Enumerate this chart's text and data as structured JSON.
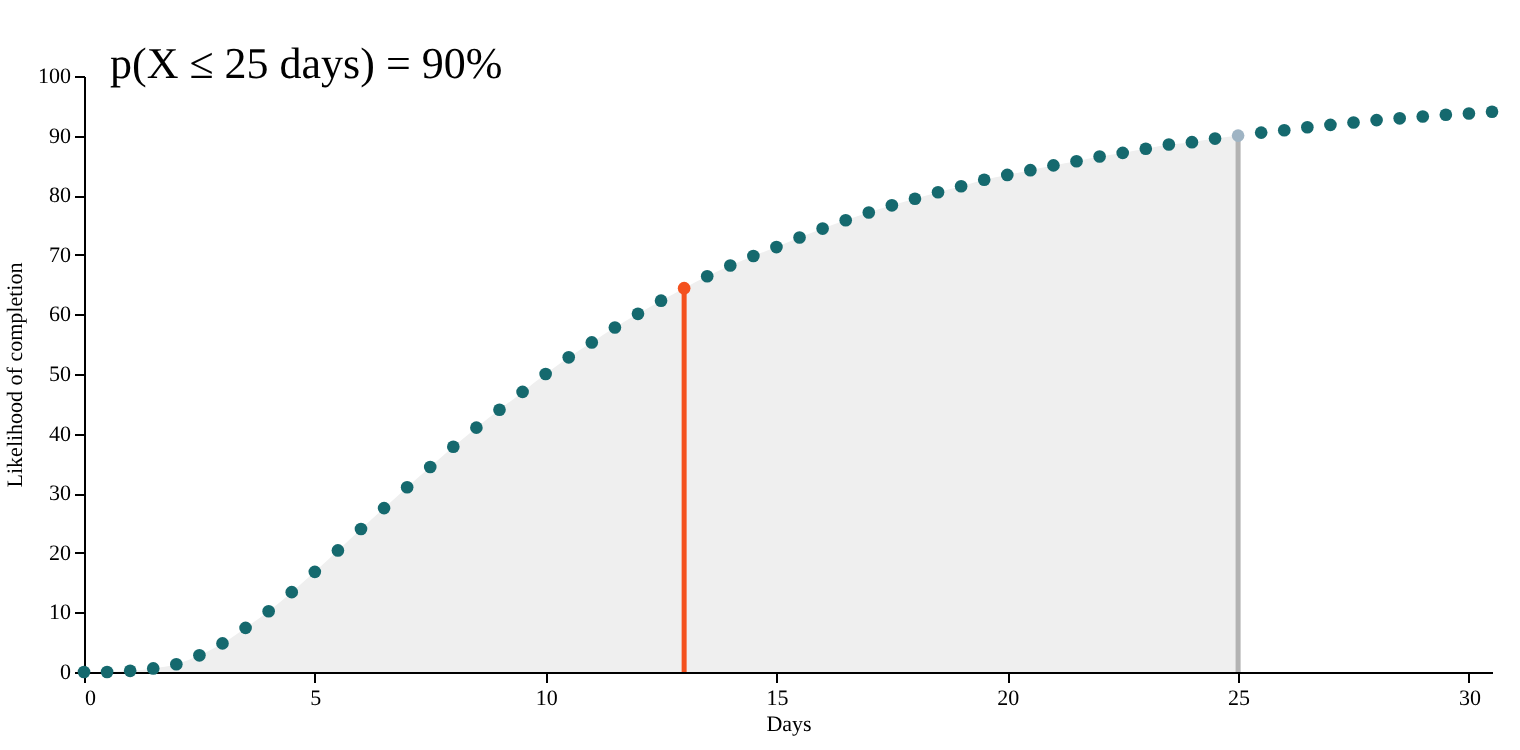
{
  "chart_data": {
    "type": "scatter",
    "title": "p(X ≤ 25 days) = 90%",
    "xlabel": "Days",
    "ylabel": "Likelihood of completion",
    "xlim": [
      0,
      30.5
    ],
    "xticks": [
      0,
      5,
      10,
      15,
      20,
      25,
      30
    ],
    "ylim": [
      0,
      100
    ],
    "yticks": [
      0,
      10,
      20,
      30,
      40,
      50,
      60,
      70,
      80,
      90,
      100
    ],
    "series": [
      {
        "type": "area",
        "color": "#efefef",
        "x": [
          0,
          0.5,
          1,
          1.5,
          2,
          2.5,
          3,
          3.5,
          4,
          4.5,
          5,
          5.5,
          6,
          6.5,
          7,
          7.5,
          8,
          8.5,
          9,
          9.5,
          10,
          10.5,
          11,
          11.5,
          12,
          12.5,
          13,
          13.5,
          14,
          14.5,
          15,
          15.5,
          16,
          16.5,
          17,
          17.5,
          18,
          18.5,
          19,
          19.5,
          20,
          20.5,
          21,
          21.5,
          22,
          22.5,
          23,
          23.5,
          24,
          24.5,
          25
        ],
        "values": [
          0,
          0,
          0.2,
          0.6,
          1.3,
          2.8,
          4.8,
          7.4,
          10.2,
          13.4,
          16.8,
          20.4,
          24,
          27.5,
          31,
          34.4,
          37.8,
          41,
          44,
          47,
          50,
          52.8,
          55.3,
          57.8,
          60.1,
          62.3,
          64.4,
          66.4,
          68.2,
          69.8,
          71.3,
          72.9,
          74.4,
          75.8,
          77.1,
          78.3,
          79.4,
          80.5,
          81.5,
          82.6,
          83.4,
          84.2,
          85,
          85.7,
          86.5,
          87.1,
          87.8,
          88.5,
          88.9,
          89.5,
          90
        ]
      },
      {
        "type": "scatter",
        "marker": "circle",
        "color": "#15696e",
        "colors": [
          "#15696e",
          "#15696e",
          "#15696e",
          "#15696e",
          "#15696e",
          "#15696e",
          "#15696e",
          "#15696e",
          "#15696e",
          "#15696e",
          "#15696e",
          "#15696e",
          "#15696e",
          "#15696e",
          "#15696e",
          "#15696e",
          "#15696e",
          "#15696e",
          "#15696e",
          "#15696e",
          "#15696e",
          "#15696e",
          "#15696e",
          "#15696e",
          "#15696e",
          "#15696e",
          "#f4511e",
          "#15696e",
          "#15696e",
          "#15696e",
          "#15696e",
          "#15696e",
          "#15696e",
          "#15696e",
          "#15696e",
          "#15696e",
          "#15696e",
          "#15696e",
          "#15696e",
          "#15696e",
          "#15696e",
          "#15696e",
          "#15696e",
          "#15696e",
          "#15696e",
          "#15696e",
          "#15696e",
          "#15696e",
          "#15696e",
          "#15696e",
          "#9fb4c4",
          "#15696e",
          "#15696e",
          "#15696e",
          "#15696e",
          "#15696e",
          "#15696e",
          "#15696e",
          "#15696e",
          "#15696e",
          "#15696e",
          "#15696e"
        ],
        "x": [
          0,
          0.5,
          1,
          1.5,
          2,
          2.5,
          3,
          3.5,
          4,
          4.5,
          5,
          5.5,
          6,
          6.5,
          7,
          7.5,
          8,
          8.5,
          9,
          9.5,
          10,
          10.5,
          11,
          11.5,
          12,
          12.5,
          13,
          13.5,
          14,
          14.5,
          15,
          15.5,
          16,
          16.5,
          17,
          17.5,
          18,
          18.5,
          19,
          19.5,
          20,
          20.5,
          21,
          21.5,
          22,
          22.5,
          23,
          23.5,
          24,
          24.5,
          25,
          25.5,
          26,
          26.5,
          27,
          27.5,
          28,
          28.5,
          29,
          29.5,
          30,
          30.5
        ],
        "values": [
          0,
          0,
          0.2,
          0.6,
          1.3,
          2.8,
          4.8,
          7.4,
          10.2,
          13.4,
          16.8,
          20.4,
          24,
          27.5,
          31,
          34.4,
          37.8,
          41,
          44,
          47,
          50,
          52.8,
          55.3,
          57.8,
          60.1,
          62.3,
          64.4,
          66.4,
          68.2,
          69.8,
          71.3,
          72.9,
          74.4,
          75.8,
          77.1,
          78.3,
          79.4,
          80.5,
          81.5,
          82.6,
          83.4,
          84.2,
          85,
          85.7,
          86.5,
          87.1,
          87.8,
          88.5,
          88.9,
          89.5,
          90,
          90.5,
          90.9,
          91.4,
          91.8,
          92.2,
          92.6,
          92.9,
          93.2,
          93.5,
          93.7,
          94
        ]
      }
    ],
    "ref_lines": [
      {
        "axis": "x",
        "value": 13,
        "color": "#f4511e"
      },
      {
        "axis": "x",
        "value": 25,
        "color": "#b3b3b3"
      }
    ]
  }
}
